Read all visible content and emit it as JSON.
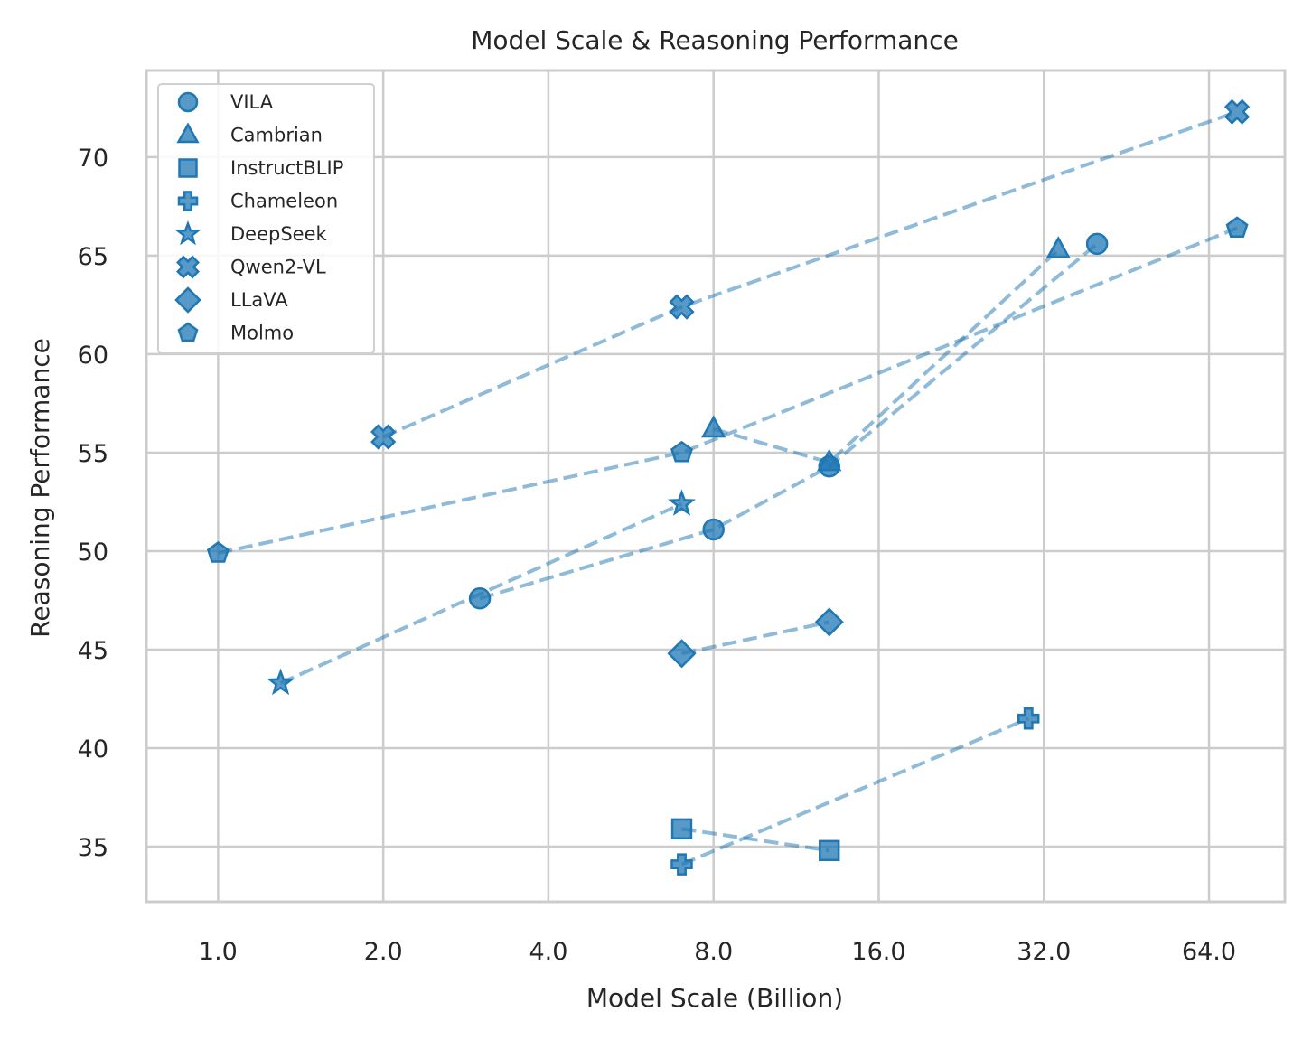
{
  "chart_data": {
    "type": "line",
    "title": "Model Scale & Reasoning Performance",
    "xlabel": "Model Scale (Billion)",
    "ylabel": "Reasoning Performance",
    "xscale": "log2",
    "xlim": [
      0.74,
      88
    ],
    "ylim": [
      32.2,
      74.4
    ],
    "xticks": [
      1,
      2,
      4,
      8,
      16,
      32,
      64
    ],
    "xtick_labels": [
      "1.0",
      "2.0",
      "4.0",
      "8.0",
      "16.0",
      "32.0",
      "64.0"
    ],
    "yticks": [
      35,
      40,
      45,
      50,
      55,
      60,
      65,
      70
    ],
    "ytick_labels": [
      "35",
      "40",
      "45",
      "50",
      "55",
      "60",
      "65",
      "70"
    ],
    "grid": true,
    "legend": "top-left",
    "color": "#1f77b4",
    "series": [
      {
        "name": "VILA",
        "marker": "circle",
        "x": [
          3,
          8,
          13,
          40
        ],
        "y": [
          47.6,
          51.1,
          54.3,
          65.6
        ]
      },
      {
        "name": "Cambrian",
        "marker": "triangle",
        "x": [
          8,
          13,
          34
        ],
        "y": [
          56.2,
          54.5,
          65.3
        ]
      },
      {
        "name": "InstructBLIP",
        "marker": "square",
        "x": [
          7,
          13
        ],
        "y": [
          35.9,
          34.8
        ]
      },
      {
        "name": "Chameleon",
        "marker": "plus",
        "x": [
          7,
          30
        ],
        "y": [
          34.1,
          41.5
        ]
      },
      {
        "name": "DeepSeek",
        "marker": "star",
        "x": [
          1.3,
          7
        ],
        "y": [
          43.3,
          52.4
        ]
      },
      {
        "name": "Qwen2-VL",
        "marker": "x",
        "x": [
          2,
          7,
          72
        ],
        "y": [
          55.8,
          62.4,
          72.3
        ]
      },
      {
        "name": "LLaVA",
        "marker": "diamond",
        "x": [
          7,
          13
        ],
        "y": [
          44.8,
          46.4
        ]
      },
      {
        "name": "Molmo",
        "marker": "pentagon",
        "x": [
          1,
          7,
          72
        ],
        "y": [
          49.9,
          55.0,
          66.4
        ]
      }
    ]
  }
}
